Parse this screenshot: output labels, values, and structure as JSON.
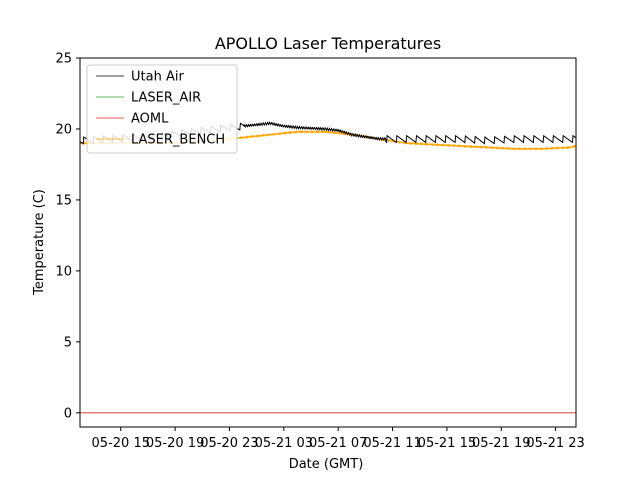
{
  "chart_data": {
    "type": "line",
    "title": "APOLLO Laser Temperatures",
    "xlabel": "Date (GMT)",
    "ylabel": "Temperature (C)",
    "ylim": [
      -1,
      25
    ],
    "xlim_hours": [
      12,
      48.5
    ],
    "x_unit": "hours since 2017-05-20 00:00 GMT",
    "y_ticks": [
      0,
      5,
      10,
      15,
      20,
      25
    ],
    "y_tick_labels": [
      "0",
      "5",
      "10",
      "15",
      "20",
      "25"
    ],
    "x_ticks_hours": [
      15,
      19,
      23,
      27,
      31,
      35,
      39,
      43,
      47
    ],
    "x_tick_labels": [
      "05-20 15",
      "05-20 19",
      "05-20 23",
      "05-21 03",
      "05-21 07",
      "05-21 11",
      "05-21 15",
      "05-21 19",
      "05-21 23"
    ],
    "grid": false,
    "legend_position": "top-left",
    "series": [
      {
        "name": "Utah Air",
        "color": "#000000",
        "x": [
          12,
          14,
          16,
          18,
          20,
          22,
          24,
          26,
          27,
          28,
          30,
          31,
          32,
          34,
          36,
          38,
          40,
          42,
          44,
          46,
          48,
          48.5
        ],
        "y": [
          19.2,
          19.3,
          19.4,
          19.5,
          19.8,
          20.0,
          20.2,
          20.4,
          20.2,
          20.1,
          20.0,
          19.9,
          19.6,
          19.3,
          19.3,
          19.3,
          19.3,
          19.2,
          19.3,
          19.3,
          19.3,
          19.3
        ],
        "oscillate": true
      },
      {
        "name": "LASER_AIR",
        "color": "#2ca02c",
        "x": [],
        "y": []
      },
      {
        "name": "AOML",
        "color": "#d62728",
        "x": [
          12,
          48.5
        ],
        "y": [
          0.0,
          0.0
        ]
      },
      {
        "name": "LASER_BENCH",
        "color": "#ffa500",
        "x": [
          12,
          14,
          16,
          18,
          20,
          22,
          24,
          26,
          28,
          30,
          32,
          34,
          36,
          38,
          40,
          42,
          44,
          46,
          48,
          48.5
        ],
        "y": [
          19.0,
          19.0,
          19.0,
          19.0,
          19.1,
          19.2,
          19.4,
          19.6,
          19.8,
          19.8,
          19.6,
          19.3,
          19.0,
          18.9,
          18.8,
          18.7,
          18.6,
          18.6,
          18.7,
          18.8
        ]
      }
    ]
  }
}
